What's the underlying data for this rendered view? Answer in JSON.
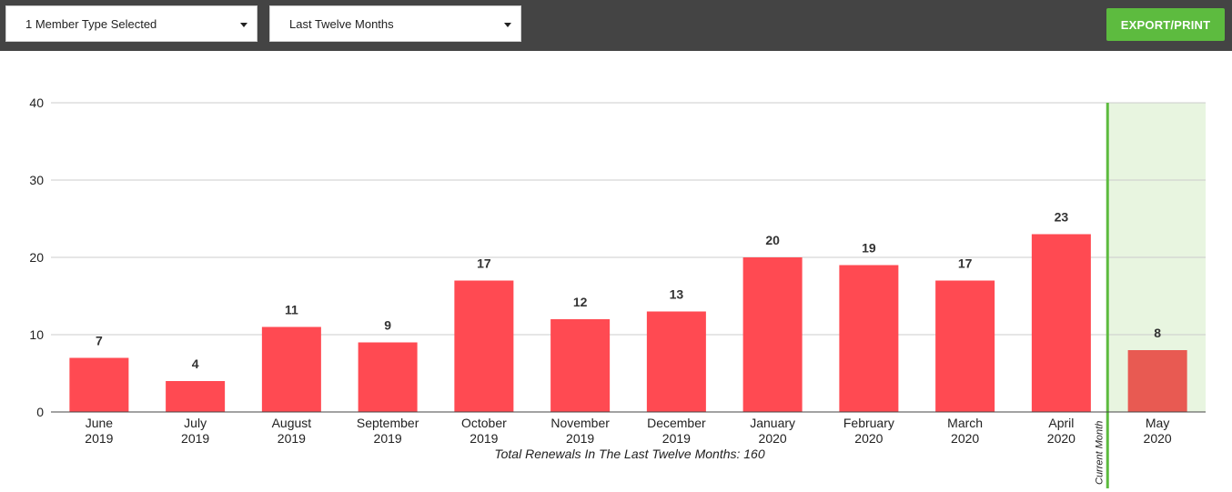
{
  "toolbar": {
    "member_type_select": "1 Member Type Selected",
    "period_select": "Last Twelve Months",
    "export_label": "EXPORT/PRINT"
  },
  "colors": {
    "bar": "#ff4a52",
    "bar_current": "#e85a52",
    "current_line": "#5dbb3f",
    "current_region": "#e8f5e0"
  },
  "chart_data": {
    "type": "bar",
    "categories": [
      [
        "June",
        "2019"
      ],
      [
        "July",
        "2019"
      ],
      [
        "August",
        "2019"
      ],
      [
        "September",
        "2019"
      ],
      [
        "October",
        "2019"
      ],
      [
        "November",
        "2019"
      ],
      [
        "December",
        "2019"
      ],
      [
        "January",
        "2020"
      ],
      [
        "February",
        "2020"
      ],
      [
        "March",
        "2020"
      ],
      [
        "April",
        "2020"
      ],
      [
        "May",
        "2020"
      ]
    ],
    "values": [
      7,
      4,
      11,
      9,
      17,
      12,
      13,
      20,
      19,
      17,
      23,
      8
    ],
    "ylim": [
      0,
      40
    ],
    "yticks": [
      0,
      10,
      20,
      30,
      40
    ],
    "grid": true,
    "current_month_index": 11,
    "current_month_label": "Current Month",
    "caption": "Total Renewals In The Last Twelve Months: 160"
  }
}
